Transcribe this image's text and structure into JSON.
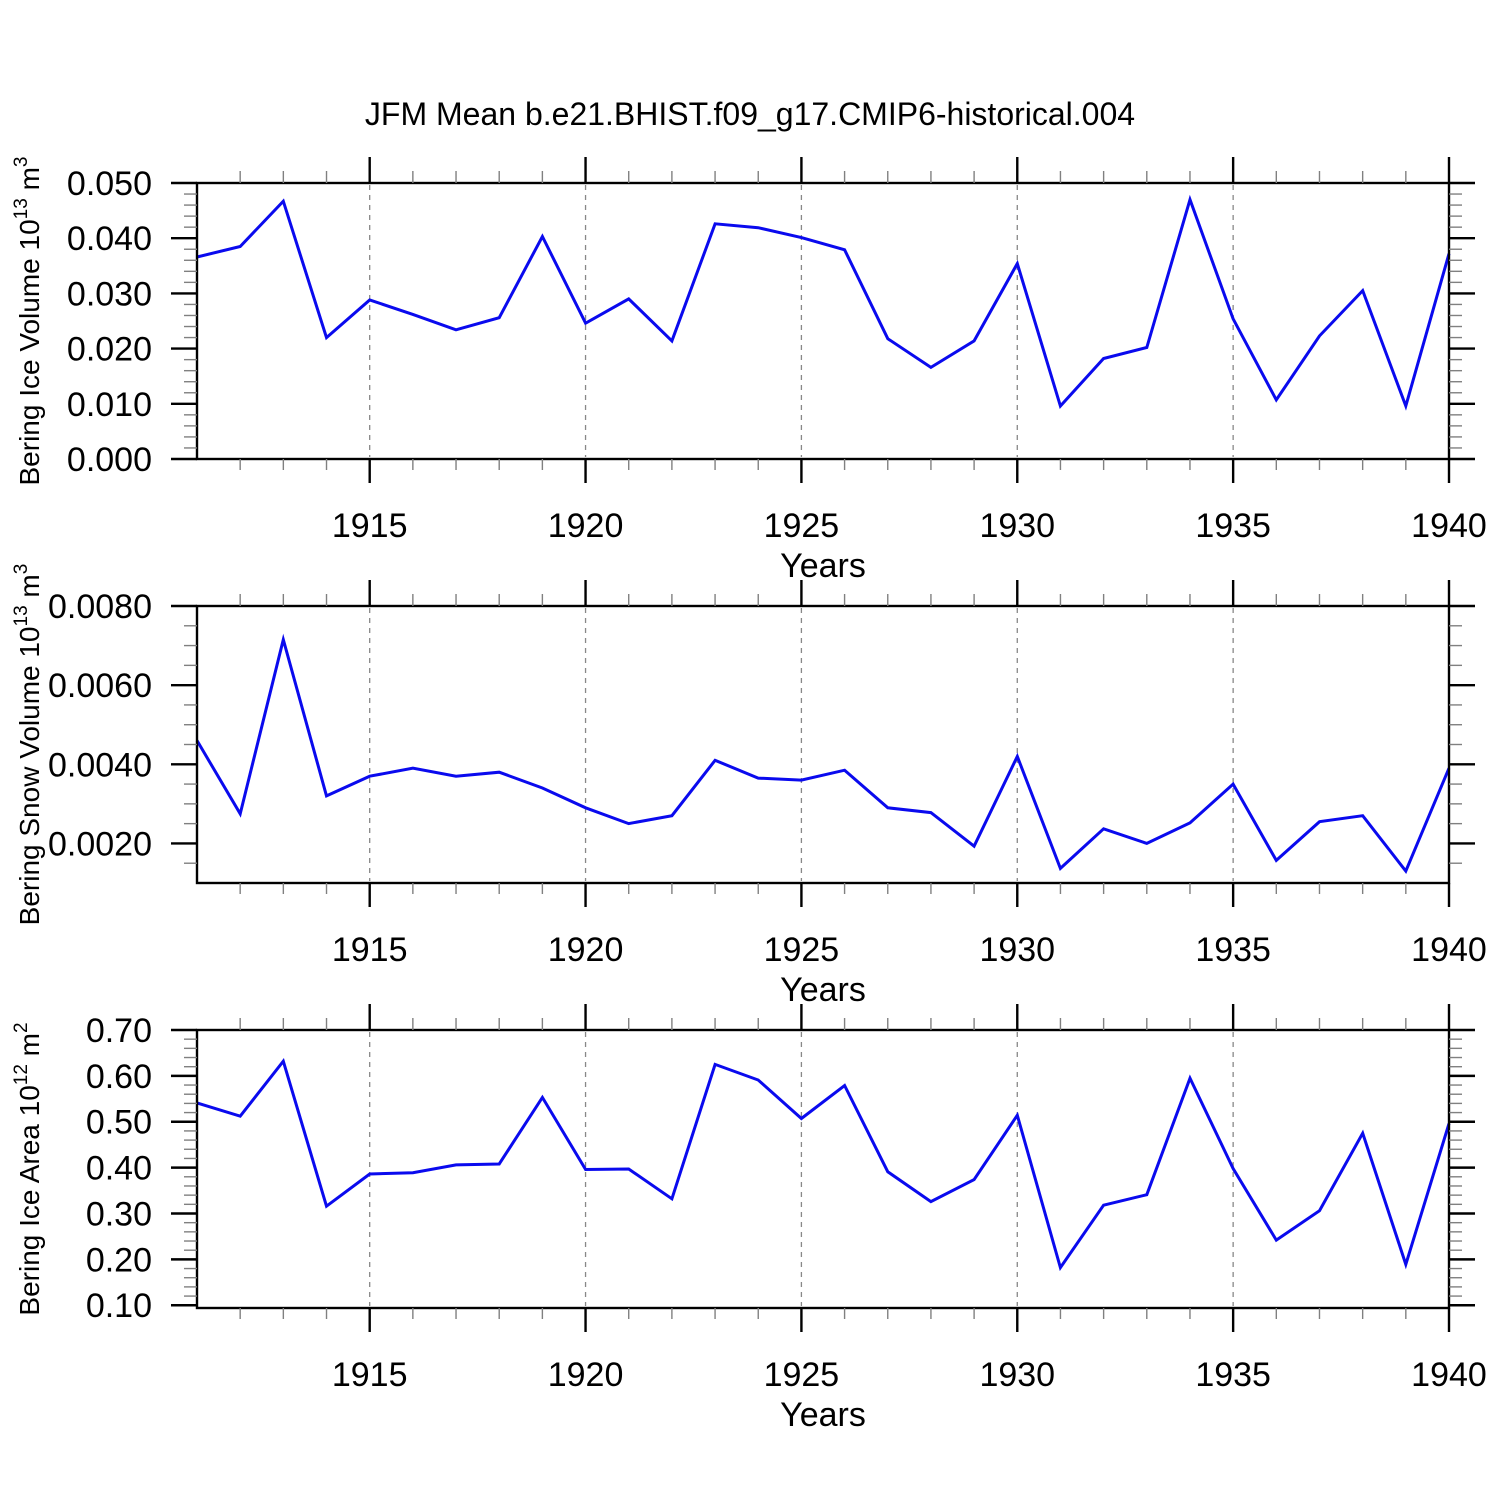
{
  "figure": {
    "title": "JFM Mean b.e21.BHIST.f09_g17.CMIP6-historical.004",
    "background": "#ffffff"
  },
  "style": {
    "line_color": "#0a0aee",
    "axis_color": "#000000",
    "grid_color": "#888888",
    "minor_tick_color": "#808080",
    "text_color": "#000000"
  },
  "chart_data": [
    {
      "id": "ice-volume",
      "type": "line",
      "ylabel_plain": "Bering Ice Volume 10^13 m^3",
      "ylabel_parts": [
        [
          "t",
          "Bering Ice Volume 10"
        ],
        [
          "sup",
          "13"
        ],
        [
          "t",
          " m"
        ],
        [
          "sup",
          "3"
        ]
      ],
      "xlabel": "Years",
      "xlim": [
        1911,
        1940
      ],
      "ylim": [
        0,
        0.05
      ],
      "xticks": [
        1915,
        1920,
        1925,
        1930,
        1935,
        1940
      ],
      "xtick_labels": [
        "1915",
        "1920",
        "1925",
        "1930",
        "1935",
        "1940"
      ],
      "grid_x": [
        1915,
        1920,
        1925,
        1930,
        1935
      ],
      "ytick_values": [
        0,
        0.01,
        0.02,
        0.03,
        0.04,
        0.05
      ],
      "ytick_labels": [
        "0.000",
        "0.010",
        "0.020",
        "0.030",
        "0.040",
        "0.050"
      ],
      "yminor_step": 0.002,
      "x_years": [
        1911,
        1912,
        1913,
        1914,
        1915,
        1916,
        1917,
        1918,
        1919,
        1920,
        1921,
        1922,
        1923,
        1924,
        1925,
        1926,
        1927,
        1928,
        1929,
        1930,
        1931,
        1932,
        1933,
        1934,
        1935,
        1936,
        1937,
        1938,
        1939,
        1940
      ],
      "values": [
        0.0366,
        0.0385,
        0.0467,
        0.022,
        0.0288,
        0.0262,
        0.0234,
        0.0256,
        0.0403,
        0.0246,
        0.029,
        0.0214,
        0.0426,
        0.0419,
        0.0401,
        0.0379,
        0.0218,
        0.0166,
        0.0214,
        0.0354,
        0.0096,
        0.0182,
        0.0202,
        0.047,
        0.0254,
        0.0107,
        0.0223,
        0.0305,
        0.0096,
        0.0372
      ]
    },
    {
      "id": "snow-volume",
      "type": "line",
      "ylabel_plain": "Bering Snow Volume 10^13 m^3",
      "ylabel_parts": [
        [
          "t",
          "Bering Snow Volume 10"
        ],
        [
          "sup",
          "13"
        ],
        [
          "t",
          " m"
        ],
        [
          "sup",
          "3"
        ]
      ],
      "xlabel": "Years",
      "xlim": [
        1911,
        1940
      ],
      "ylim": [
        0.001,
        0.008
      ],
      "xticks": [
        1915,
        1920,
        1925,
        1930,
        1935,
        1940
      ],
      "xtick_labels": [
        "1915",
        "1920",
        "1925",
        "1930",
        "1935",
        "1940"
      ],
      "grid_x": [
        1915,
        1920,
        1925,
        1930,
        1935
      ],
      "ytick_values": [
        0.002,
        0.004,
        0.006,
        0.008
      ],
      "ytick_labels": [
        "0.0020",
        "0.0040",
        "0.0060",
        "0.0080"
      ],
      "yminor_step": 0.0005,
      "x_years": [
        1911,
        1912,
        1913,
        1914,
        1915,
        1916,
        1917,
        1918,
        1919,
        1920,
        1921,
        1922,
        1923,
        1924,
        1925,
        1926,
        1927,
        1928,
        1929,
        1930,
        1931,
        1932,
        1933,
        1934,
        1935,
        1936,
        1937,
        1938,
        1939,
        1940
      ],
      "values": [
        0.0046,
        0.00275,
        0.00715,
        0.0032,
        0.0037,
        0.0039,
        0.0037,
        0.0038,
        0.0034,
        0.0029,
        0.0025,
        0.0027,
        0.0041,
        0.00365,
        0.0036,
        0.00385,
        0.0029,
        0.00278,
        0.00193,
        0.0042,
        0.00137,
        0.00237,
        0.002,
        0.00252,
        0.0035,
        0.00157,
        0.00255,
        0.0027,
        0.0013,
        0.0039
      ]
    },
    {
      "id": "ice-area",
      "type": "line",
      "ylabel_plain": "Bering Ice Area 10^12 m^2",
      "ylabel_parts": [
        [
          "t",
          "Bering Ice Area 10"
        ],
        [
          "sup",
          "12"
        ],
        [
          "t",
          " m"
        ],
        [
          "sup",
          "2"
        ]
      ],
      "xlabel": "Years",
      "xlim": [
        1911,
        1940
      ],
      "ylim": [
        0.094,
        0.7
      ],
      "xticks": [
        1915,
        1920,
        1925,
        1930,
        1935,
        1940
      ],
      "xtick_labels": [
        "1915",
        "1920",
        "1925",
        "1930",
        "1935",
        "1940"
      ],
      "grid_x": [
        1915,
        1920,
        1925,
        1930,
        1935
      ],
      "ytick_values": [
        0.1,
        0.2,
        0.3,
        0.4,
        0.5,
        0.6,
        0.7
      ],
      "ytick_labels": [
        "0.10",
        "0.20",
        "0.30",
        "0.40",
        "0.50",
        "0.60",
        "0.70"
      ],
      "yminor_step": 0.02,
      "x_years": [
        1911,
        1912,
        1913,
        1914,
        1915,
        1916,
        1917,
        1918,
        1919,
        1920,
        1921,
        1922,
        1923,
        1924,
        1925,
        1926,
        1927,
        1928,
        1929,
        1930,
        1931,
        1932,
        1933,
        1934,
        1935,
        1936,
        1937,
        1938,
        1939,
        1940
      ],
      "values": [
        0.541,
        0.512,
        0.632,
        0.316,
        0.386,
        0.389,
        0.406,
        0.408,
        0.553,
        0.396,
        0.397,
        0.332,
        0.625,
        0.591,
        0.507,
        0.579,
        0.391,
        0.326,
        0.374,
        0.514,
        0.182,
        0.318,
        0.341,
        0.595,
        0.398,
        0.242,
        0.306,
        0.475,
        0.189,
        0.496
      ]
    }
  ]
}
